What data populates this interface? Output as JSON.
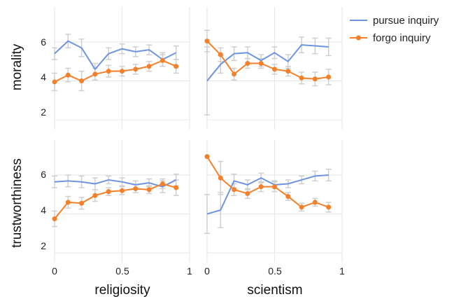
{
  "chart_data": {
    "type": "line",
    "legend": {
      "placement": "top-right",
      "entries": [
        {
          "label": "pursue inquiry",
          "color": "#6f94e0",
          "marker": "none"
        },
        {
          "label": "forgo inquiry",
          "color": "#f5802a",
          "marker": "circle"
        }
      ]
    },
    "x_ticks": [
      "0",
      "0.5",
      "1"
    ],
    "xlim": [
      0,
      1
    ],
    "ylim": [
      1.5,
      7.8
    ],
    "y_ticks": [
      "2",
      "4",
      "6"
    ],
    "grid": true,
    "columns": [
      {
        "xlabel": "religiosity"
      },
      {
        "xlabel": "scientism"
      }
    ],
    "rows": [
      {
        "ylabel": "morality"
      },
      {
        "ylabel": "trustworthiness"
      }
    ],
    "panels": [
      {
        "row": 0,
        "col": 0,
        "series": [
          {
            "name": "pursue inquiry",
            "x": [
              0,
              0.1,
              0.2,
              0.3,
              0.4,
              0.5,
              0.6,
              0.7,
              0.8,
              0.9
            ],
            "y": [
              5.4,
              6.05,
              5.7,
              4.6,
              5.4,
              5.65,
              5.5,
              5.6,
              5.1,
              5.45
            ],
            "err": [
              0.3,
              0.35,
              0.45,
              0.3,
              0.3,
              0.25,
              0.25,
              0.25,
              0.35,
              0.35
            ]
          },
          {
            "name": "forgo inquiry",
            "x": [
              0,
              0.1,
              0.2,
              0.3,
              0.4,
              0.5,
              0.6,
              0.7,
              0.8,
              0.9
            ],
            "y": [
              3.95,
              4.3,
              4.0,
              4.35,
              4.5,
              4.5,
              4.6,
              4.75,
              5.05,
              4.75
            ],
            "err": [
              0.45,
              0.35,
              0.5,
              0.3,
              0.3,
              0.25,
              0.25,
              0.25,
              0.3,
              0.35
            ]
          }
        ]
      },
      {
        "row": 0,
        "col": 1,
        "series": [
          {
            "name": "pursue inquiry",
            "x": [
              0,
              0.1,
              0.2,
              0.3,
              0.4,
              0.5,
              0.6,
              0.7,
              0.8,
              0.9
            ],
            "y": [
              4.0,
              4.85,
              5.4,
              5.45,
              5.05,
              5.45,
              5.0,
              5.85,
              5.8,
              5.75
            ],
            "err": [
              1.75,
              0.45,
              0.35,
              0.3,
              0.3,
              0.3,
              0.35,
              0.4,
              0.4,
              0.45
            ]
          },
          {
            "name": "forgo inquiry",
            "x": [
              0,
              0.1,
              0.2,
              0.3,
              0.4,
              0.5,
              0.6,
              0.7,
              0.8,
              0.9
            ],
            "y": [
              6.05,
              5.35,
              4.35,
              4.9,
              4.9,
              4.6,
              4.5,
              4.15,
              4.1,
              4.2
            ],
            "err": [
              0.55,
              0.35,
              0.3,
              0.25,
              0.25,
              0.25,
              0.25,
              0.3,
              0.35,
              0.4
            ]
          }
        ]
      },
      {
        "row": 1,
        "col": 0,
        "series": [
          {
            "name": "pursue inquiry",
            "x": [
              0,
              0.1,
              0.2,
              0.3,
              0.4,
              0.5,
              0.6,
              0.7,
              0.8,
              0.9
            ],
            "y": [
              5.65,
              5.7,
              5.65,
              5.55,
              5.75,
              5.65,
              5.5,
              5.6,
              5.4,
              5.75
            ],
            "err": [
              0.3,
              0.3,
              0.3,
              0.3,
              0.2,
              0.2,
              0.2,
              0.2,
              0.3,
              0.3
            ]
          },
          {
            "name": "forgo inquiry",
            "x": [
              0,
              0.1,
              0.2,
              0.3,
              0.4,
              0.5,
              0.6,
              0.7,
              0.8,
              0.9
            ],
            "y": [
              3.75,
              4.6,
              4.55,
              4.95,
              5.15,
              5.2,
              5.3,
              5.25,
              5.55,
              5.35
            ],
            "err": [
              0.4,
              0.3,
              0.3,
              0.3,
              0.2,
              0.2,
              0.2,
              0.2,
              0.25,
              0.4
            ]
          }
        ]
      },
      {
        "row": 1,
        "col": 1,
        "series": [
          {
            "name": "pursue inquiry",
            "x": [
              0,
              0.1,
              0.2,
              0.3,
              0.4,
              0.5,
              0.6,
              0.7,
              0.8,
              0.9
            ],
            "y": [
              4.0,
              4.2,
              5.7,
              5.5,
              5.85,
              5.5,
              5.55,
              5.75,
              5.95,
              6.0
            ],
            "err": [
              1.0,
              0.9,
              0.35,
              0.25,
              0.25,
              0.2,
              0.2,
              0.2,
              0.25,
              0.3
            ]
          },
          {
            "name": "forgo inquiry",
            "x": [
              0,
              0.1,
              0.2,
              0.3,
              0.4,
              0.5,
              0.6,
              0.7,
              0.8,
              0.9
            ],
            "y": [
              6.95,
              5.85,
              5.25,
              5.05,
              5.4,
              5.4,
              4.9,
              4.35,
              4.6,
              4.35
            ],
            "err": [
              0.0,
              0.85,
              0.3,
              0.25,
              0.25,
              0.25,
              0.2,
              0.2,
              0.2,
              0.25
            ]
          }
        ]
      }
    ]
  }
}
